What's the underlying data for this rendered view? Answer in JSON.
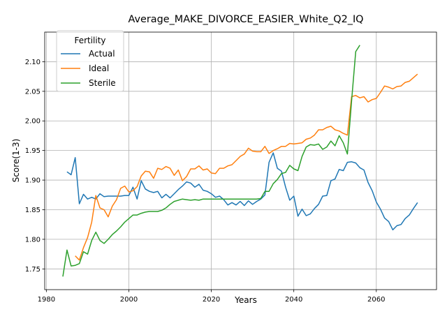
{
  "chart_data": {
    "type": "line",
    "title": "Average_MAKE_DIVORCE_EASIER_White_Q2_IQ",
    "xlabel": "Years",
    "ylabel": "Score(1-3)",
    "xlim": [
      1979.6,
      2074.6
    ],
    "ylim": [
      1.715,
      2.15
    ],
    "xticks": [
      1980,
      2000,
      2020,
      2040,
      2060
    ],
    "xtick_labels": [
      "1980",
      "2000",
      "2020",
      "2040",
      "2060"
    ],
    "yticks": [
      1.75,
      1.8,
      1.85,
      1.9,
      1.95,
      2.0,
      2.05,
      2.1
    ],
    "ytick_labels": [
      "1.75",
      "1.80",
      "1.85",
      "1.90",
      "1.95",
      "2.00",
      "2.05",
      "2.10"
    ],
    "grid": true,
    "legend": {
      "title": "Fertility",
      "position": "top-left"
    },
    "series": [
      {
        "name": "Actual",
        "color": "#1f77b4",
        "x": [
          1985,
          1986,
          1987,
          1988,
          1989,
          1990,
          1991,
          1992,
          1993,
          1994,
          1995,
          1996,
          1997,
          1998,
          1999,
          2000,
          2001,
          2002,
          2003,
          2004,
          2005,
          2006,
          2007,
          2008,
          2009,
          2010,
          2011,
          2012,
          2013,
          2014,
          2015,
          2016,
          2017,
          2018,
          2019,
          2020,
          2021,
          2022,
          2023,
          2024,
          2025,
          2026,
          2027,
          2028,
          2029,
          2030,
          2031,
          2032,
          2033,
          2034,
          2035,
          2036,
          2037,
          2038,
          2039,
          2040,
          2041,
          2042,
          2043,
          2044,
          2045,
          2046,
          2047,
          2048,
          2049,
          2050,
          2051,
          2052,
          2053,
          2054,
          2055,
          2056,
          2057,
          2058,
          2059,
          2060,
          2061,
          2062,
          2063,
          2064,
          2065,
          2066,
          2067,
          2068,
          2069,
          2070
        ],
        "y": [
          1.914,
          1.909,
          1.938,
          1.86,
          1.876,
          1.868,
          1.871,
          1.868,
          1.877,
          1.872,
          1.873,
          1.873,
          1.873,
          1.873,
          1.874,
          1.874,
          1.888,
          1.868,
          1.899,
          1.885,
          1.881,
          1.879,
          1.881,
          1.87,
          1.876,
          1.87,
          1.877,
          1.884,
          1.89,
          1.897,
          1.895,
          1.888,
          1.893,
          1.883,
          1.881,
          1.877,
          1.871,
          1.873,
          1.867,
          1.858,
          1.862,
          1.858,
          1.864,
          1.857,
          1.865,
          1.859,
          1.864,
          1.868,
          1.875,
          1.93,
          1.946,
          1.92,
          1.915,
          1.888,
          1.866,
          1.873,
          1.839,
          1.851,
          1.84,
          1.843,
          1.852,
          1.859,
          1.873,
          1.874,
          1.899,
          1.902,
          1.918,
          1.916,
          1.93,
          1.931,
          1.929,
          1.921,
          1.917,
          1.896,
          1.882,
          1.863,
          1.851,
          1.836,
          1.83,
          1.816,
          1.823,
          1.825,
          1.835,
          1.841,
          1.852,
          1.862
        ]
      },
      {
        "name": "Ideal",
        "color": "#ff7f0e",
        "x": [
          1987,
          1988,
          1989,
          1990,
          1991,
          1992,
          1993,
          1994,
          1995,
          1996,
          1997,
          1998,
          1999,
          2000,
          2001,
          2002,
          2003,
          2004,
          2005,
          2006,
          2007,
          2008,
          2009,
          2010,
          2011,
          2012,
          2013,
          2014,
          2015,
          2016,
          2017,
          2018,
          2019,
          2020,
          2021,
          2022,
          2023,
          2024,
          2025,
          2026,
          2027,
          2028,
          2029,
          2030,
          2031,
          2032,
          2033,
          2034,
          2035,
          2036,
          2037,
          2038,
          2039,
          2040,
          2041,
          2042,
          2043,
          2044,
          2045,
          2046,
          2047,
          2048,
          2049,
          2050,
          2051,
          2052,
          2053,
          2054,
          2055,
          2056,
          2057,
          2058,
          2059,
          2060,
          2061,
          2062,
          2063,
          2064,
          2065,
          2066,
          2067,
          2068,
          2069,
          2070
        ],
        "y": [
          1.772,
          1.765,
          1.786,
          1.803,
          1.829,
          1.874,
          1.853,
          1.85,
          1.838,
          1.856,
          1.867,
          1.886,
          1.89,
          1.88,
          1.882,
          1.889,
          1.907,
          1.915,
          1.914,
          1.903,
          1.92,
          1.918,
          1.923,
          1.92,
          1.908,
          1.917,
          1.899,
          1.906,
          1.919,
          1.919,
          1.924,
          1.917,
          1.919,
          1.912,
          1.911,
          1.92,
          1.92,
          1.924,
          1.926,
          1.933,
          1.94,
          1.944,
          1.954,
          1.949,
          1.948,
          1.948,
          1.957,
          1.945,
          1.95,
          1.953,
          1.957,
          1.957,
          1.962,
          1.961,
          1.962,
          1.963,
          1.969,
          1.971,
          1.976,
          1.985,
          1.985,
          1.989,
          1.991,
          1.985,
          1.983,
          1.979,
          1.976,
          2.041,
          2.043,
          2.039,
          2.041,
          2.032,
          2.036,
          2.038,
          2.048,
          2.059,
          2.057,
          2.054,
          2.058,
          2.059,
          2.065,
          2.067,
          2.073,
          2.079
        ]
      },
      {
        "name": "Sterile",
        "color": "#2ca02c",
        "x": [
          1984,
          1985,
          1986,
          1987,
          1988,
          1989,
          1990,
          1991,
          1992,
          1993,
          1994,
          1995,
          1996,
          1997,
          1998,
          1999,
          2000,
          2001,
          2002,
          2003,
          2004,
          2005,
          2006,
          2007,
          2008,
          2009,
          2010,
          2011,
          2012,
          2013,
          2014,
          2015,
          2016,
          2017,
          2018,
          2019,
          2020,
          2021,
          2022,
          2023,
          2024,
          2025,
          2026,
          2027,
          2028,
          2029,
          2030,
          2031,
          2032,
          2033,
          2034,
          2035,
          2036,
          2037,
          2038,
          2039,
          2040,
          2041,
          2042,
          2043,
          2044,
          2045,
          2046,
          2047,
          2048,
          2049,
          2050,
          2051,
          2052,
          2053,
          2054,
          2055,
          2056
        ],
        "y": [
          1.737,
          1.782,
          1.755,
          1.756,
          1.759,
          1.779,
          1.775,
          1.798,
          1.812,
          1.798,
          1.793,
          1.8,
          1.808,
          1.814,
          1.821,
          1.829,
          1.835,
          1.841,
          1.841,
          1.844,
          1.846,
          1.847,
          1.847,
          1.847,
          1.849,
          1.853,
          1.859,
          1.864,
          1.866,
          1.868,
          1.867,
          1.866,
          1.867,
          1.866,
          1.868,
          1.868,
          1.868,
          1.868,
          1.868,
          1.868,
          1.868,
          1.868,
          1.868,
          1.868,
          1.868,
          1.868,
          1.868,
          1.868,
          1.869,
          1.881,
          1.881,
          1.894,
          1.901,
          1.911,
          1.913,
          1.925,
          1.919,
          1.916,
          1.94,
          1.956,
          1.96,
          1.959,
          1.961,
          1.952,
          1.956,
          1.966,
          1.958,
          1.975,
          1.963,
          1.944,
          2.034,
          2.117,
          2.128
        ]
      }
    ]
  }
}
